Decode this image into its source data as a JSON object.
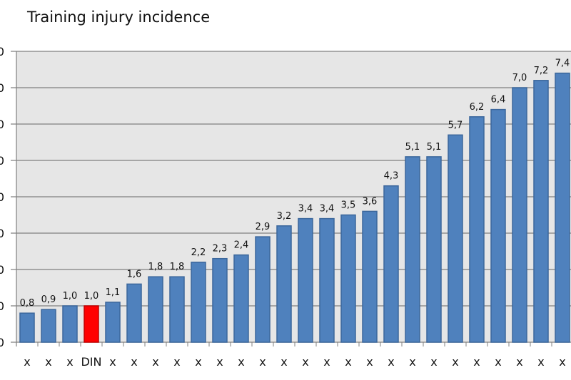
{
  "chart_data": {
    "type": "bar",
    "title_prefix": ".",
    "title": "Training injury incidence",
    "categories": [
      "x",
      "x",
      "x",
      "DIN",
      "x",
      "x",
      "x",
      "x",
      "x",
      "x",
      "x",
      "x",
      "x",
      "x",
      "x",
      "x",
      "x",
      "x",
      "x",
      "x",
      "x",
      "x",
      "x",
      "x",
      "x",
      "x"
    ],
    "values": [
      0.8,
      0.9,
      1.0,
      1.0,
      1.1,
      1.6,
      1.8,
      1.8,
      2.2,
      2.3,
      2.4,
      2.9,
      3.2,
      3.4,
      3.4,
      3.5,
      3.6,
      4.3,
      5.1,
      5.1,
      5.7,
      6.2,
      6.4,
      7.0,
      7.2,
      7.4
    ],
    "data_labels": [
      "0,8",
      "0,9",
      "1,0",
      "1,0",
      "1,1",
      "1,6",
      "1,8",
      "1,8",
      "2,2",
      "2,3",
      "2,4",
      "2,9",
      "3,2",
      "3,4",
      "3,4",
      "3,5",
      "3,6",
      "4,3",
      "5,1",
      "5,1",
      "5,7",
      "6,2",
      "6,4",
      "7,0",
      "7,2",
      "7,4"
    ],
    "highlight_index": 3,
    "yticks": [
      "0",
      "0",
      "0",
      "0",
      "0",
      "0",
      "0",
      "0",
      "0"
    ],
    "ylim": [
      0,
      8
    ],
    "grid": true,
    "xlabel": "",
    "ylabel": "",
    "colors": {
      "bar": "#4f81bd",
      "bar_border": "#3b679c",
      "highlight": "#ff0000",
      "plot_bg": "#e6e6e6",
      "grid": "#808080"
    }
  }
}
